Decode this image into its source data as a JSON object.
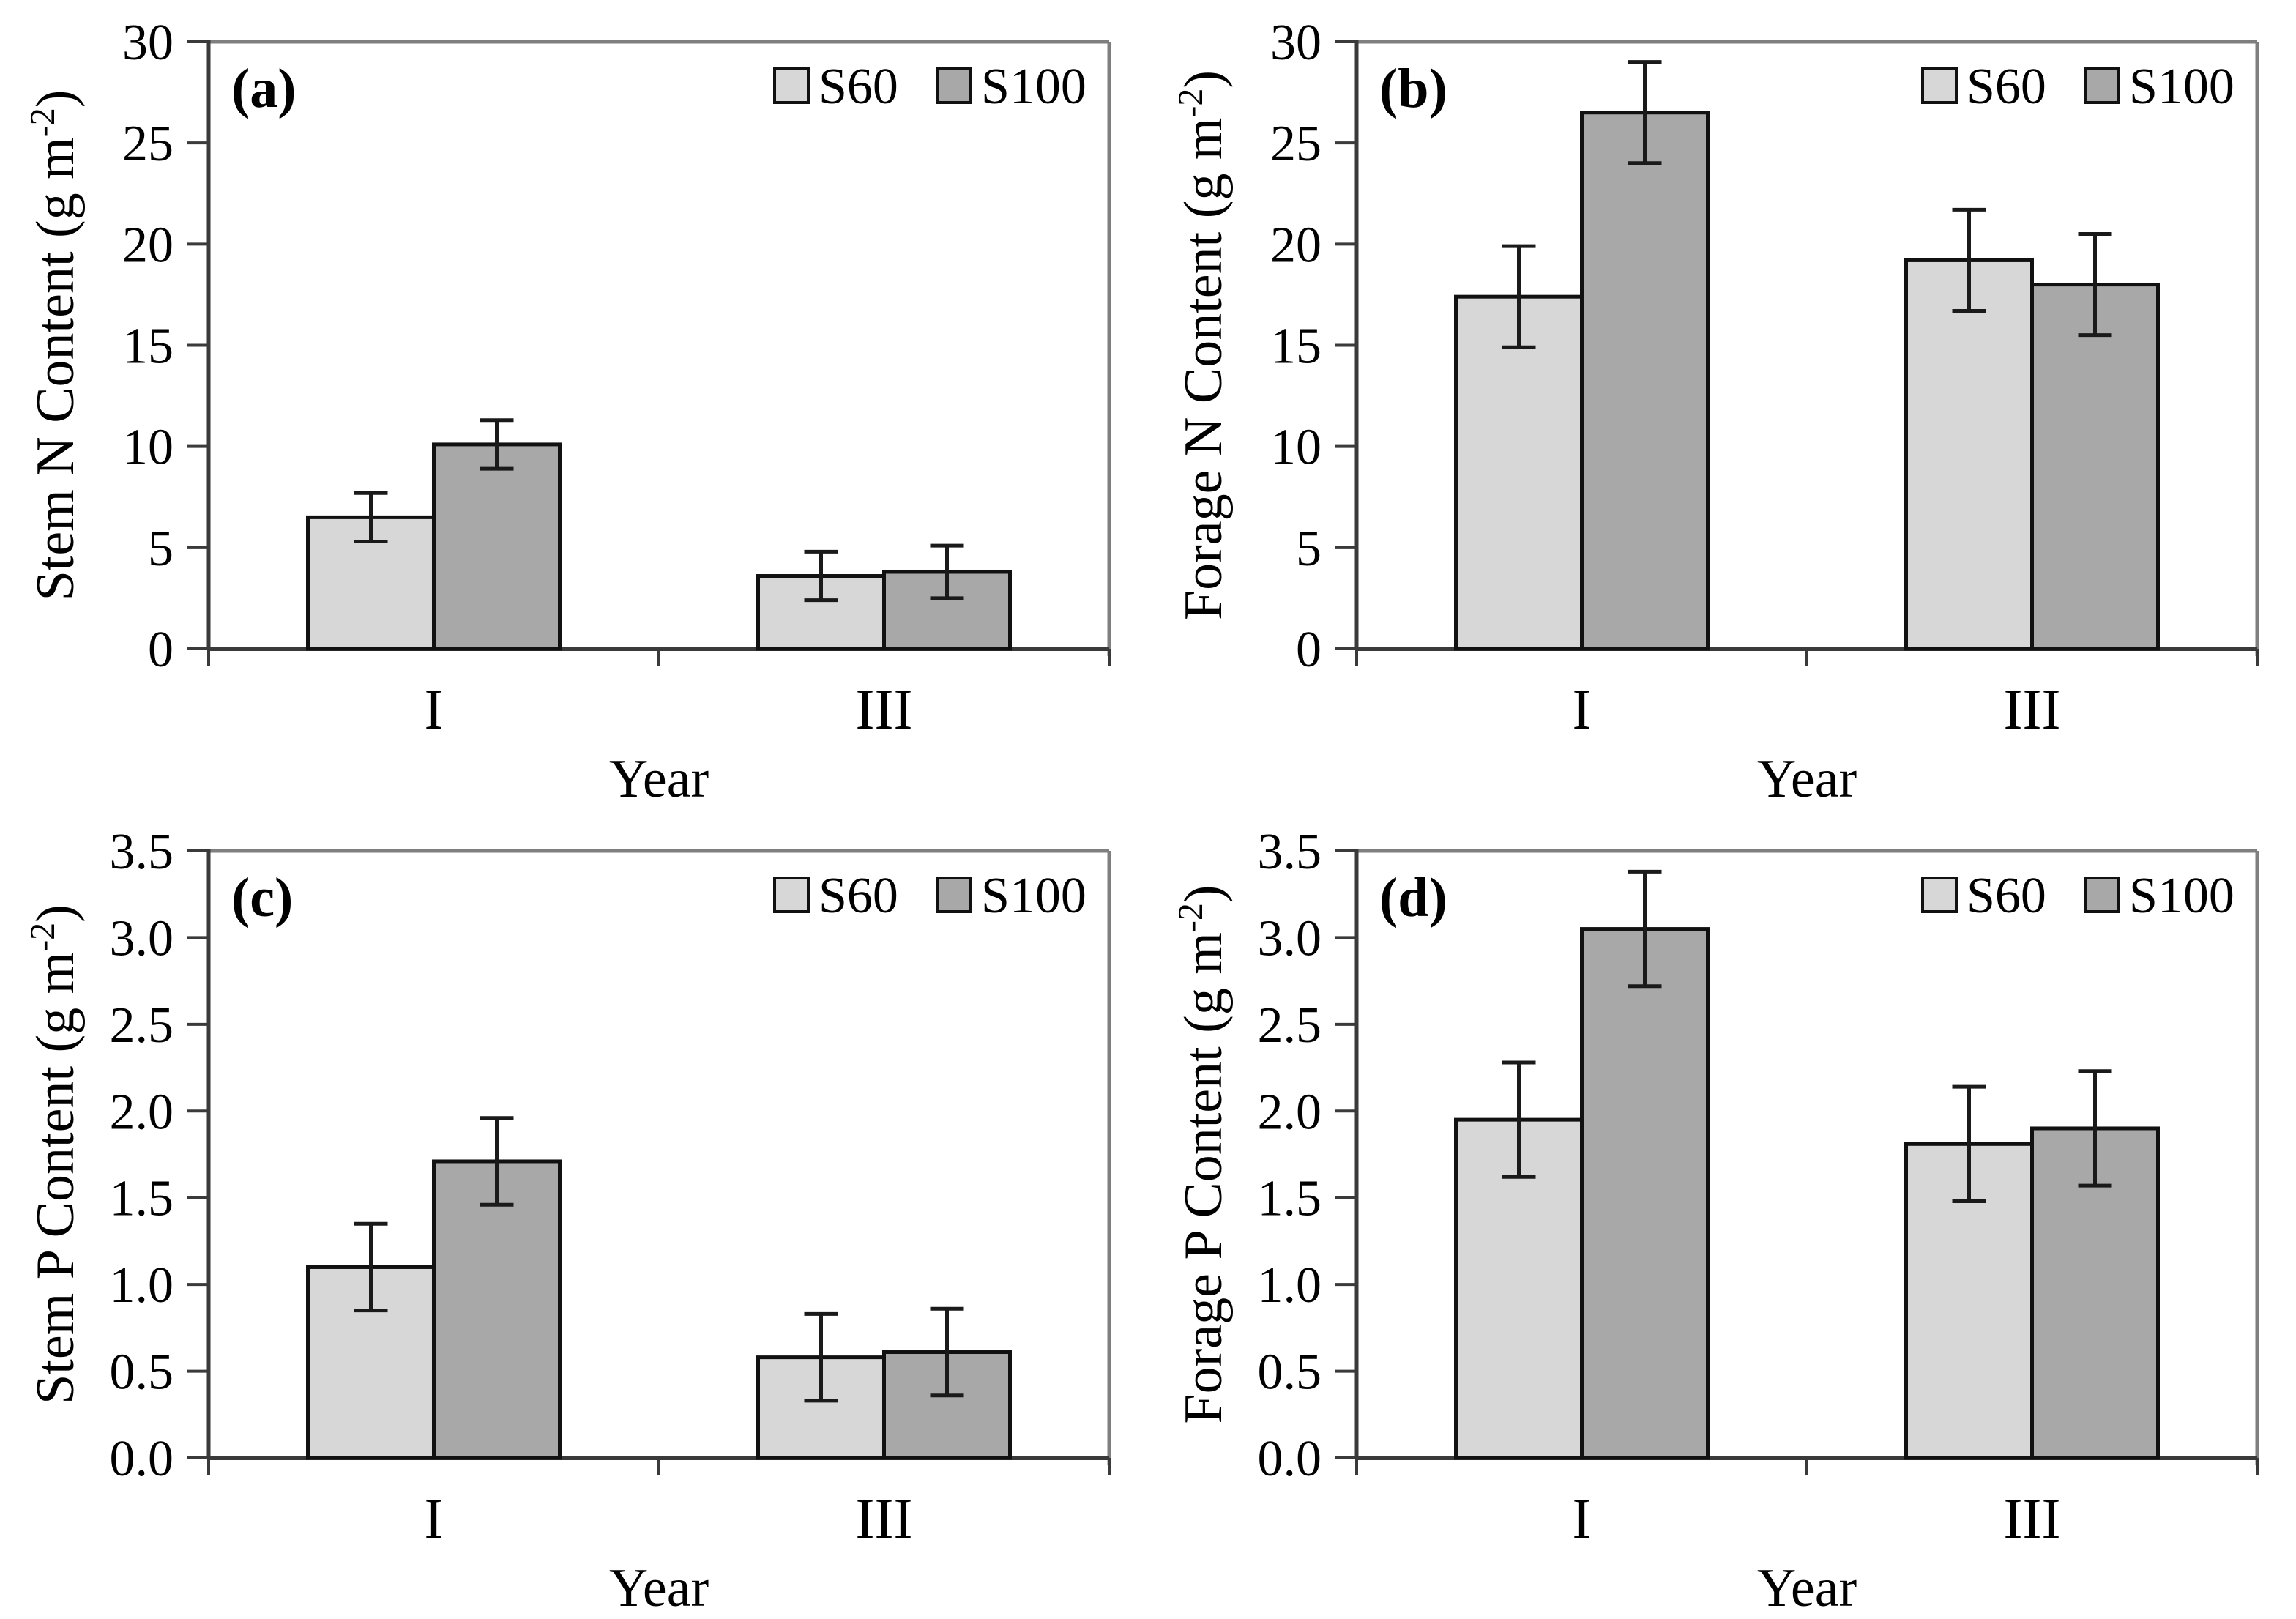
{
  "colors": {
    "s60_fill": "#d7d7d7",
    "s100_fill": "#a8a8a8",
    "bar_stroke": "#111111",
    "error_bar": "#1a1a1a",
    "axis_line": "#3a3a3a",
    "frame_line": "#7f7f7f",
    "text": "#000000",
    "background": "#ffffff"
  },
  "legend": {
    "items": [
      {
        "label": "S60"
      },
      {
        "label": "S100"
      }
    ],
    "position": "top-right"
  },
  "x_axis_title": "Year",
  "categories": [
    "I",
    "III"
  ],
  "chart_data": [
    {
      "type": "bar",
      "panel_label": "(a)",
      "ylabel": {
        "text": "Stem N Content (g m",
        "sup": "-2",
        "suffix": ")"
      },
      "xlabel": "Year",
      "categories": [
        "I",
        "III"
      ],
      "ylim": [
        0,
        30
      ],
      "ytick_values": [
        0,
        5,
        10,
        15,
        20,
        25,
        30
      ],
      "ytick_labels": [
        "0",
        "5",
        "10",
        "15",
        "20",
        "25",
        "30"
      ],
      "grid": false,
      "legend_position": "top-right",
      "series": [
        {
          "name": "S60",
          "values": [
            6.5,
            3.6
          ],
          "errors": [
            1.2,
            1.2
          ]
        },
        {
          "name": "S100",
          "values": [
            10.1,
            3.8
          ],
          "errors": [
            1.2,
            1.3
          ]
        }
      ]
    },
    {
      "type": "bar",
      "panel_label": "(b)",
      "ylabel": {
        "text": "Forage N Content (g m",
        "sup": "-2",
        "suffix": ")"
      },
      "xlabel": "Year",
      "categories": [
        "I",
        "III"
      ],
      "ylim": [
        0,
        30
      ],
      "ytick_values": [
        0,
        5,
        10,
        15,
        20,
        25,
        30
      ],
      "ytick_labels": [
        "0",
        "5",
        "10",
        "15",
        "20",
        "25",
        "30"
      ],
      "grid": false,
      "legend_position": "top-right",
      "series": [
        {
          "name": "S60",
          "values": [
            17.4,
            19.2
          ],
          "errors": [
            2.5,
            2.5
          ]
        },
        {
          "name": "S100",
          "values": [
            26.5,
            18.0
          ],
          "errors": [
            2.5,
            2.5
          ]
        }
      ]
    },
    {
      "type": "bar",
      "panel_label": "(c)",
      "ylabel": {
        "text": "Stem P Content (g m",
        "sup": "-2",
        "suffix": ")"
      },
      "xlabel": "Year",
      "categories": [
        "I",
        "III"
      ],
      "ylim": [
        0,
        3.5
      ],
      "ytick_values": [
        0,
        0.5,
        1.0,
        1.5,
        2.0,
        2.5,
        3.0,
        3.5
      ],
      "ytick_labels": [
        "0.0",
        "0.5",
        "1.0",
        "1.5",
        "2.0",
        "2.5",
        "3.0",
        "3.5"
      ],
      "grid": false,
      "legend_position": "top-right",
      "series": [
        {
          "name": "S60",
          "values": [
            1.1,
            0.58
          ],
          "errors": [
            0.25,
            0.25
          ]
        },
        {
          "name": "S100",
          "values": [
            1.71,
            0.61
          ],
          "errors": [
            0.25,
            0.25
          ]
        }
      ]
    },
    {
      "type": "bar",
      "panel_label": "(d)",
      "ylabel": {
        "text": "Forage P Content (g m",
        "sup": "-2",
        "suffix": ")"
      },
      "xlabel": "Year",
      "categories": [
        "I",
        "III"
      ],
      "ylim": [
        0,
        3.5
      ],
      "ytick_values": [
        0,
        0.5,
        1.0,
        1.5,
        2.0,
        2.5,
        3.0,
        3.5
      ],
      "ytick_labels": [
        "0.0",
        "0.5",
        "1.0",
        "1.5",
        "2.0",
        "2.5",
        "3.0",
        "3.5"
      ],
      "grid": false,
      "legend_position": "top-right",
      "series": [
        {
          "name": "S60",
          "values": [
            1.95,
            1.81
          ],
          "errors": [
            0.33,
            0.33
          ]
        },
        {
          "name": "S100",
          "values": [
            3.05,
            1.9
          ],
          "errors": [
            0.33,
            0.33
          ]
        }
      ]
    }
  ]
}
